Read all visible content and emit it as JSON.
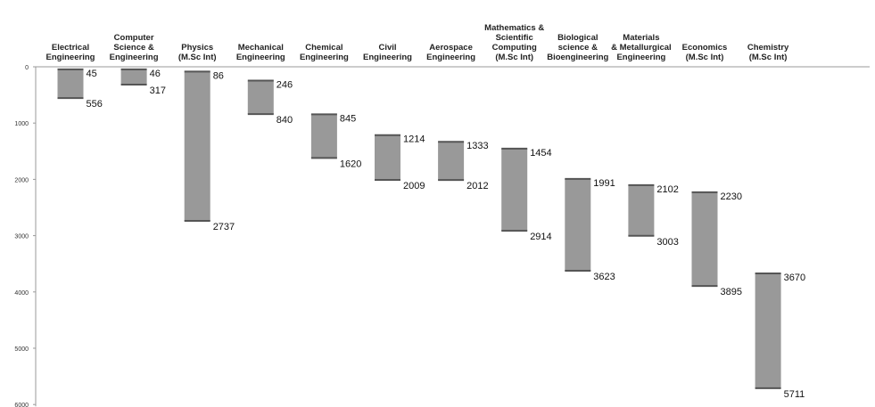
{
  "chart_data": {
    "type": "bar",
    "subtype": "floating-range",
    "title": "",
    "xlabel": "",
    "ylabel": "",
    "ylim": [
      0,
      6000
    ],
    "y_inverted": true,
    "y_ticks": [
      0,
      1000,
      2000,
      3000,
      4000,
      5000,
      6000
    ],
    "y_tick_labels": [
      "0",
      "1000",
      "2000",
      "3000",
      "4000",
      "5000",
      "6000"
    ],
    "grid": false,
    "legend": "none",
    "bar_color": "#999999",
    "categories": [
      [
        "Electrical",
        "Engineering"
      ],
      [
        "Computer",
        "Science &",
        "Engineering"
      ],
      [
        "Physics",
        "(M.Sc Int)"
      ],
      [
        "Mechanical",
        "Engineering"
      ],
      [
        "Chemical",
        "Engineering"
      ],
      [
        "Civil",
        "Engineering"
      ],
      [
        "Aerospace",
        "Engineering"
      ],
      [
        "Mathematics &",
        "Scientific",
        "Computing",
        "(M.Sc Int)"
      ],
      [
        "Biological",
        "science &",
        "Bioengineering"
      ],
      [
        "Materials",
        "& Metallurgical",
        "Engineering"
      ],
      [
        "Economics",
        "(M.Sc Int)"
      ],
      [
        "Chemistry",
        "(M.Sc Int)"
      ]
    ],
    "series": [
      {
        "values_low": [
          45,
          46,
          86,
          246,
          845,
          1214,
          1333,
          1454,
          1991,
          2102,
          2230,
          3670
        ],
        "values_high": [
          556,
          317,
          2737,
          840,
          1620,
          2009,
          2012,
          2914,
          3623,
          3003,
          3895,
          5711
        ]
      }
    ]
  }
}
